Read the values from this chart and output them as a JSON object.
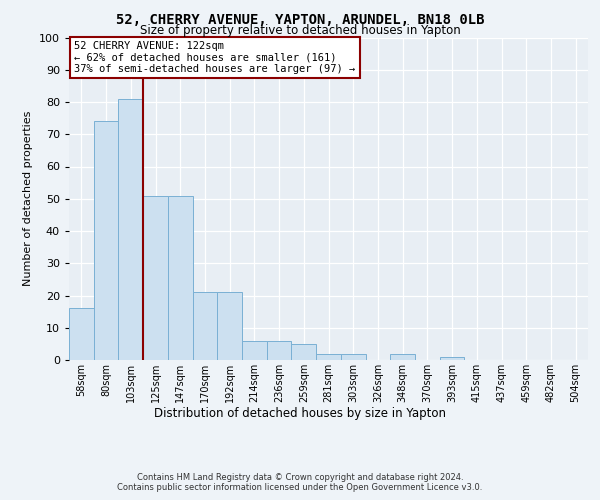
{
  "title1": "52, CHERRY AVENUE, YAPTON, ARUNDEL, BN18 0LB",
  "title2": "Size of property relative to detached houses in Yapton",
  "xlabel": "Distribution of detached houses by size in Yapton",
  "ylabel": "Number of detached properties",
  "bin_labels": [
    "58sqm",
    "80sqm",
    "103sqm",
    "125sqm",
    "147sqm",
    "170sqm",
    "192sqm",
    "214sqm",
    "236sqm",
    "259sqm",
    "281sqm",
    "303sqm",
    "326sqm",
    "348sqm",
    "370sqm",
    "393sqm",
    "415sqm",
    "437sqm",
    "459sqm",
    "482sqm",
    "504sqm"
  ],
  "bar_values": [
    16,
    74,
    81,
    51,
    51,
    21,
    21,
    6,
    6,
    5,
    2,
    2,
    0,
    2,
    0,
    1,
    0,
    0,
    0,
    0,
    0
  ],
  "bar_color": "#cce0f0",
  "bar_edge_color": "#7ab0d4",
  "vline_color": "#8b0000",
  "annotation_text": "52 CHERRY AVENUE: 122sqm\n← 62% of detached houses are smaller (161)\n37% of semi-detached houses are larger (97) →",
  "annotation_box_color": "#ffffff",
  "annotation_box_edge": "#8b0000",
  "ylim": [
    0,
    100
  ],
  "yticks": [
    0,
    10,
    20,
    30,
    40,
    50,
    60,
    70,
    80,
    90,
    100
  ],
  "footnote": "Contains HM Land Registry data © Crown copyright and database right 2024.\nContains public sector information licensed under the Open Government Licence v3.0.",
  "fig_bg_color": "#eef3f8",
  "plot_bg_color": "#e8eef4"
}
